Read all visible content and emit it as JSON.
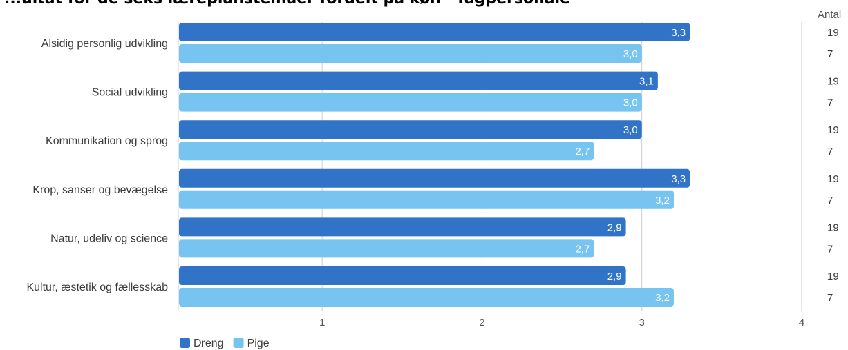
{
  "chart_data": {
    "type": "bar",
    "orientation": "horizontal",
    "title": "...ultat for de seks læreplanstemaer fordelt på køn - fagpersonale",
    "categories": [
      "Alsidig personlig udvikling",
      "Social udvikling",
      "Kommunikation og sprog",
      "Krop, sanser og bevægelse",
      "Natur, udeliv og science",
      "Kultur, æstetik og fællesskab"
    ],
    "series": [
      {
        "name": "Dreng",
        "color": "#3173c6",
        "values": [
          3.3,
          3.1,
          3.0,
          3.3,
          2.9,
          2.9
        ],
        "labels": [
          "3,3",
          "3,1",
          "3,0",
          "3,3",
          "2,9",
          "2,9"
        ],
        "counts": [
          "19",
          "19",
          "19",
          "19",
          "19",
          "19"
        ]
      },
      {
        "name": "Pige",
        "color": "#77c4f0",
        "values": [
          3.0,
          3.0,
          2.7,
          3.2,
          2.7,
          3.2
        ],
        "labels": [
          "3,0",
          "3,0",
          "2,7",
          "3,2",
          "2,7",
          "3,2"
        ],
        "counts": [
          "7",
          "7",
          "7",
          "7",
          "7",
          "7"
        ]
      }
    ],
    "xlim": [
      0.1,
      4
    ],
    "xticks": [
      1,
      2,
      3,
      4
    ],
    "xtick_labels": [
      "1",
      "2",
      "3",
      "4"
    ],
    "count_header": "Antal",
    "legend_position": "bottom-left",
    "grid": true
  }
}
